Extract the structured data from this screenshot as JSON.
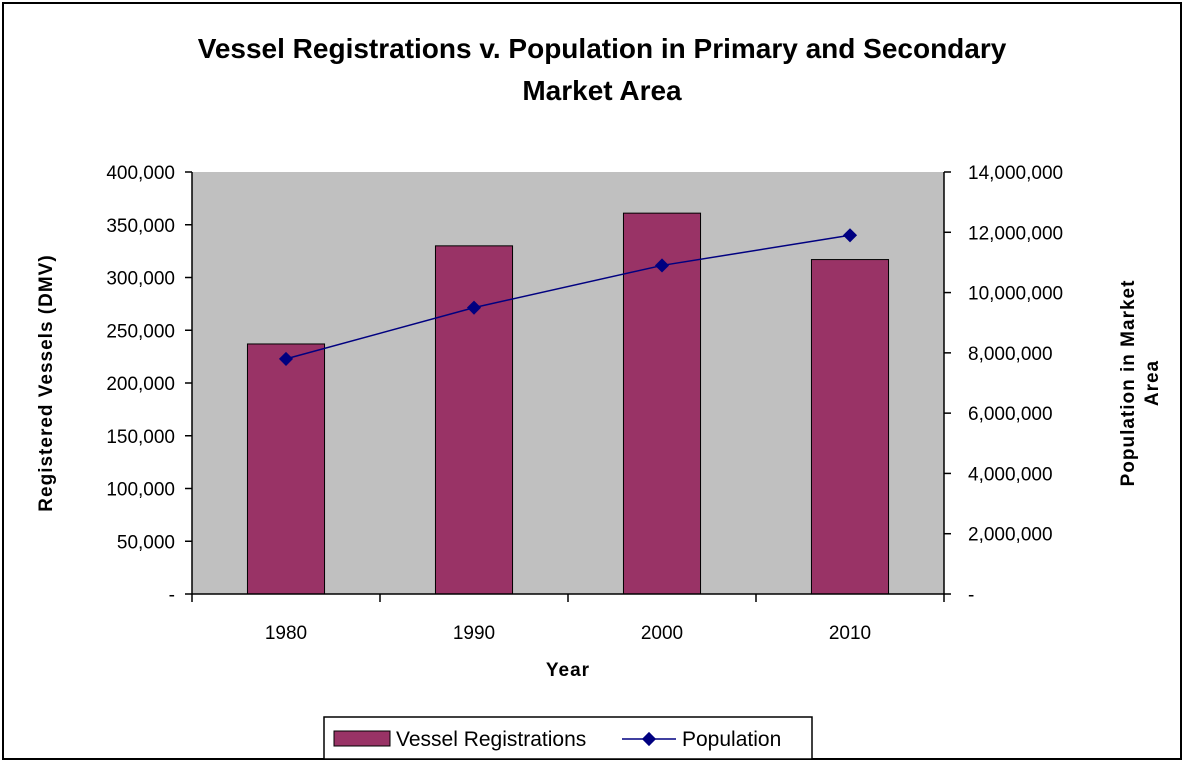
{
  "chart_data": {
    "type": "bar",
    "title_lines": [
      "Vessel Registrations v. Population in Primary and Secondary",
      "Market Area"
    ],
    "xlabel": "Year",
    "ylabel": "Registered Vessels (DMV)",
    "y2label_lines": [
      "Population in Market",
      "Area"
    ],
    "categories": [
      "1980",
      "1990",
      "2000",
      "2010"
    ],
    "ylim": [
      0,
      400000
    ],
    "y2lim": [
      0,
      14000000
    ],
    "yticks": [
      "-",
      "50,000",
      "100,000",
      "150,000",
      "200,000",
      "250,000",
      "300,000",
      "350,000",
      "400,000"
    ],
    "y2ticks": [
      "-",
      "2,000,000",
      "4,000,000",
      "6,000,000",
      "8,000,000",
      "10,000,000",
      "12,000,000",
      "14,000,000"
    ],
    "grid": false,
    "legend_position": "bottom",
    "series": [
      {
        "name": "Vessel Registrations",
        "type": "bar",
        "axis": "left",
        "color": "#993366",
        "values": [
          237000,
          330000,
          361000,
          317000
        ]
      },
      {
        "name": "Population",
        "type": "line",
        "axis": "right",
        "color": "#000080",
        "values": [
          7800000,
          9500000,
          10900000,
          11900000
        ]
      }
    ]
  },
  "colors": {
    "plot_bg": "#c0c0c0",
    "bar": "#993366",
    "line": "#000080"
  }
}
